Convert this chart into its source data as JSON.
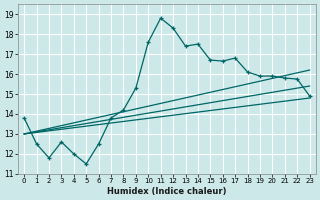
{
  "xlabel": "Humidex (Indice chaleur)",
  "background_color": "#cce8e8",
  "grid_color": "#b8d8d8",
  "line_color": "#006666",
  "xlim": [
    -0.5,
    23.5
  ],
  "ylim": [
    11,
    19.5
  ],
  "yticks": [
    11,
    12,
    13,
    14,
    15,
    16,
    17,
    18,
    19
  ],
  "xticks": [
    0,
    1,
    2,
    3,
    4,
    5,
    6,
    7,
    8,
    9,
    10,
    11,
    12,
    13,
    14,
    15,
    16,
    17,
    18,
    19,
    20,
    21,
    22,
    23
  ],
  "zigzag": {
    "x": [
      0,
      1,
      2,
      3,
      4,
      5,
      6,
      7,
      8,
      9,
      10,
      11,
      12,
      13,
      14,
      15,
      16,
      17,
      18,
      19,
      20,
      21,
      22,
      23
    ],
    "y": [
      13.8,
      12.5,
      11.8,
      12.6,
      12.0,
      11.5,
      12.5,
      13.8,
      14.2,
      15.3,
      17.6,
      18.8,
      18.3,
      17.4,
      17.5,
      16.7,
      16.65,
      16.8,
      16.1,
      15.9,
      15.9,
      15.8,
      15.75,
      14.9
    ]
  },
  "straight_lines": [
    {
      "x0": 0,
      "y0": 13.0,
      "x1": 23,
      "y1": 14.8
    },
    {
      "x0": 0,
      "y0": 13.0,
      "x1": 23,
      "y1": 15.4
    },
    {
      "x0": 0,
      "y0": 13.0,
      "x1": 23,
      "y1": 16.2
    }
  ]
}
